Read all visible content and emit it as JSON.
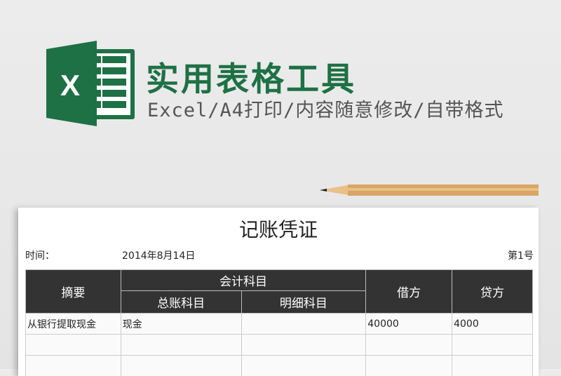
{
  "banner": {
    "title": "实用表格工具",
    "subtitle": "Excel/A4打印/内容随意修改/自带格式",
    "logo_letter": "X",
    "brand_color": "#1e7145"
  },
  "voucher": {
    "title": "记账凭证",
    "time_label": "时间：",
    "date": "2014年8月14日",
    "number": "第1号",
    "headers": {
      "summary": "摘要",
      "account": "会计科目",
      "general": "总账科目",
      "detail": "明细科目",
      "debit": "借方",
      "credit": "贷方"
    },
    "rows": [
      [
        "从银行提取现金",
        "现金",
        "",
        "40000",
        "4000"
      ],
      [
        "",
        "",
        "",
        "",
        ""
      ],
      [
        "",
        "",
        "",
        "",
        ""
      ]
    ]
  }
}
